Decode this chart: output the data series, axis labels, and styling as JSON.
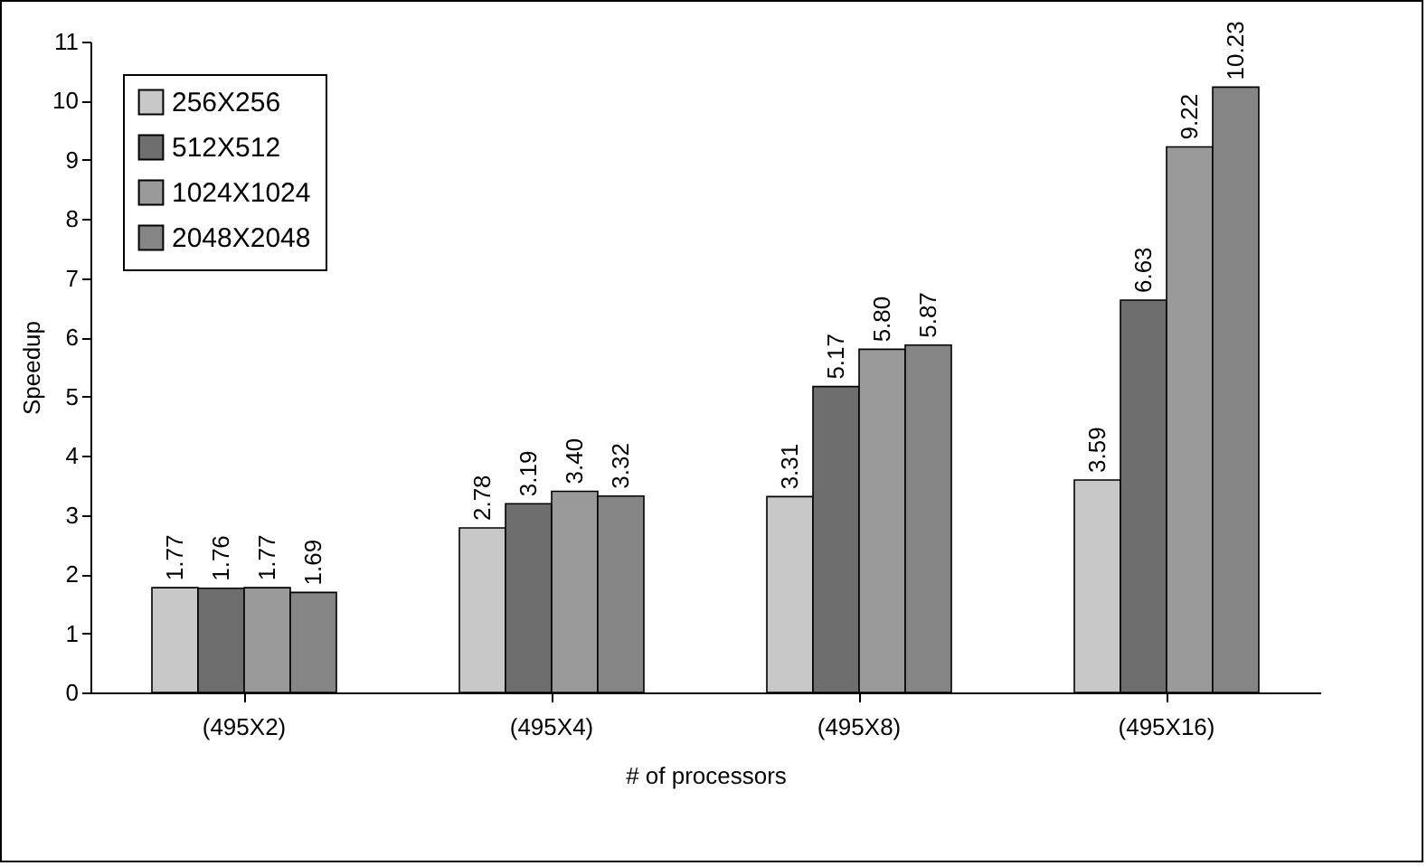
{
  "chart_data": {
    "type": "bar",
    "xlabel": "# of processors",
    "ylabel": "Speedup",
    "categories": [
      "(495X2)",
      "(495X4)",
      "(495X8)",
      "(495X16)"
    ],
    "series": [
      {
        "name": "256X256",
        "color": "#c8c8c8",
        "values": [
          1.77,
          2.78,
          3.31,
          3.59
        ],
        "value_labels": [
          "1.77",
          "2.78",
          "3.31",
          "3.59"
        ]
      },
      {
        "name": "512X512",
        "color": "#6e6e6e",
        "values": [
          1.76,
          3.19,
          5.17,
          6.63
        ],
        "value_labels": [
          "1.76",
          "3.19",
          "5.17",
          "6.63"
        ]
      },
      {
        "name": "1024X1024",
        "color": "#9a9a9a",
        "values": [
          1.77,
          3.4,
          5.8,
          9.22
        ],
        "value_labels": [
          "1.77",
          "3.40",
          "5.80",
          "9.22"
        ]
      },
      {
        "name": "2048X2048",
        "color": "#858585",
        "values": [
          1.69,
          3.32,
          5.87,
          10.23
        ],
        "value_labels": [
          "1.69",
          "3.32",
          "5.87",
          "10.23"
        ]
      }
    ],
    "ylim": [
      0,
      11
    ],
    "yticks": [
      0,
      1,
      2,
      3,
      4,
      5,
      6,
      7,
      8,
      9,
      10,
      11
    ],
    "grid": false,
    "legend": "top left"
  }
}
